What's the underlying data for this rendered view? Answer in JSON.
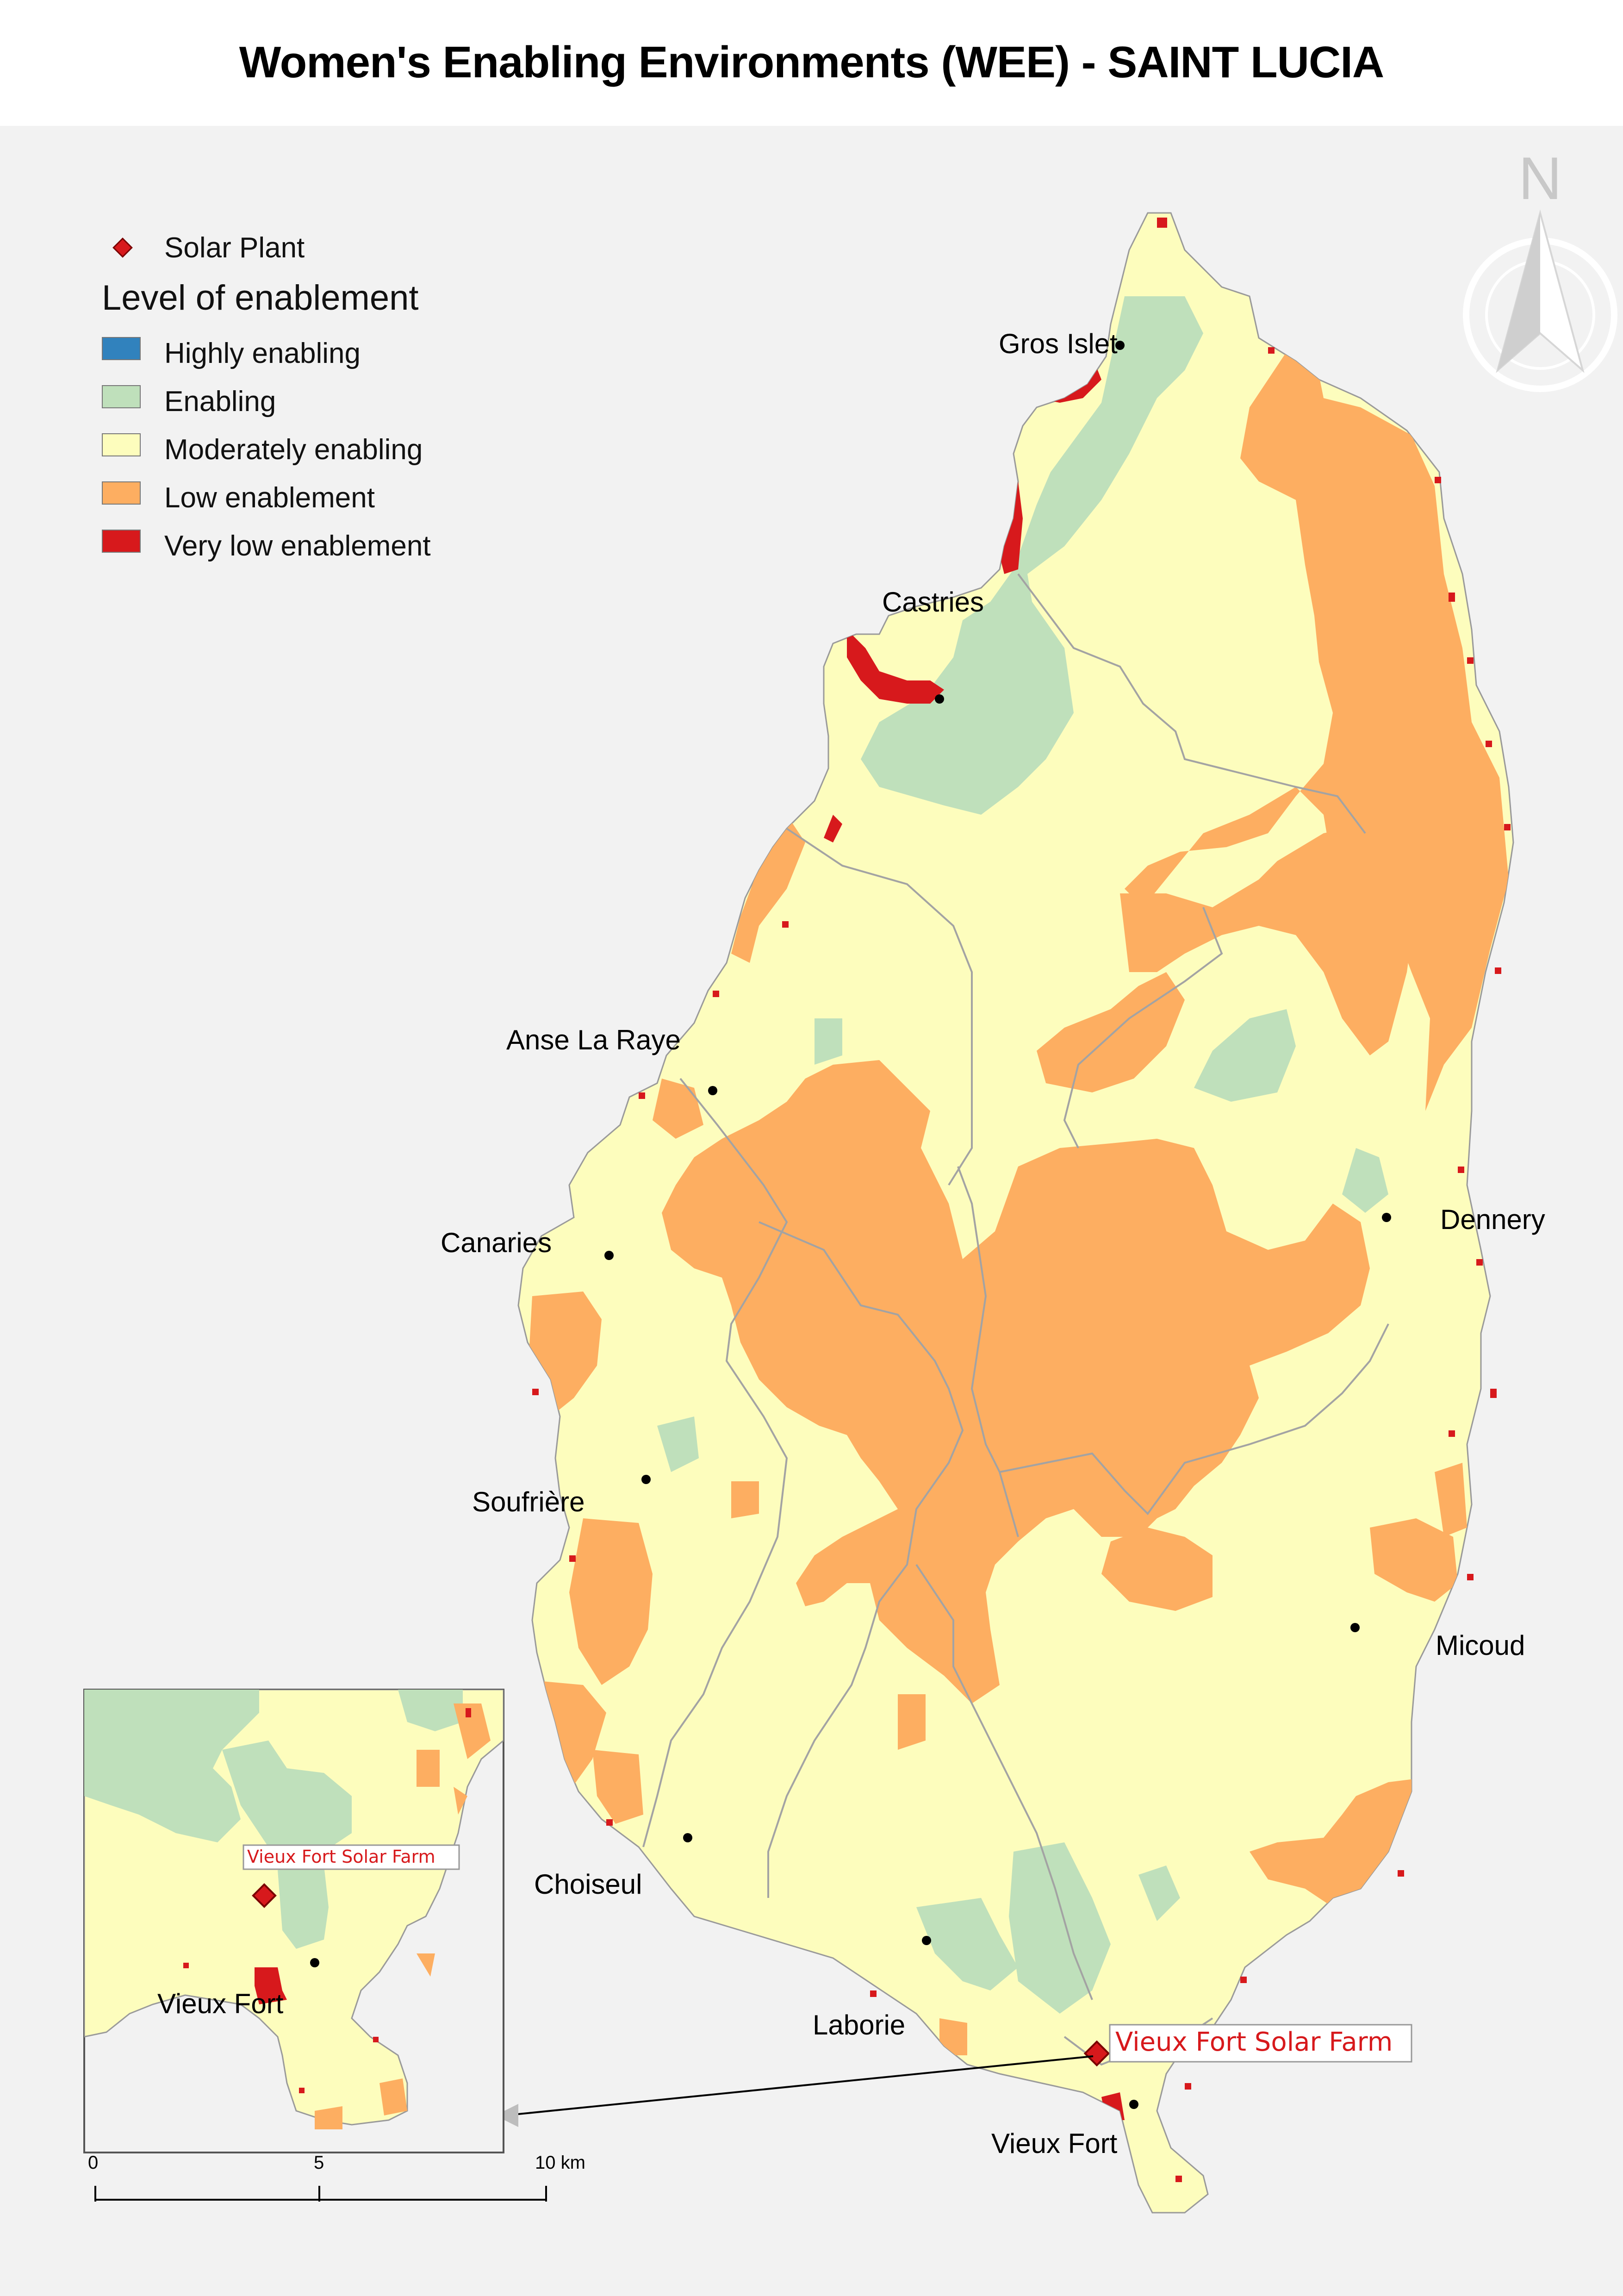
{
  "title": "Women's Enabling Environments (WEE) - SAINT LUCIA",
  "north_arrow": {
    "label": "N",
    "icon": "north-arrow-icon"
  },
  "legend": {
    "solar_label": "Solar Plant",
    "heading": "Level of enablement",
    "classes": [
      {
        "label": "Highly enabling",
        "color": "#3182bd"
      },
      {
        "label": "Enabling",
        "color": "#bfe0bb"
      },
      {
        "label": "Moderately enabling",
        "color": "#fdfdbd"
      },
      {
        "label": "Low enablement",
        "color": "#fdae61"
      },
      {
        "label": "Very low enablement",
        "color": "#d7191c"
      }
    ]
  },
  "places": {
    "gros_islet": "Gros Islet",
    "castries": "Castries",
    "anse_la_raye": "Anse La Raye",
    "canaries": "Canaries",
    "dennery": "Dennery",
    "soufriere": "Soufrière",
    "micoud": "Micoud",
    "choiseul": "Choiseul",
    "laborie": "Laborie",
    "vieux_fort": "Vieux Fort"
  },
  "solar_farm_label": "Vieux Fort Solar Farm",
  "inset": {
    "solar_farm_label": "Vieux Fort Solar Farm",
    "town_label": "Vieux Fort"
  },
  "scale_bar": {
    "labels": [
      "0",
      "5",
      "10 km"
    ]
  },
  "colors": {
    "land": "#fdfdbd",
    "sea": "#f2f2f2",
    "boundary": "#a3a3a3",
    "solar_label": "#d7191c"
  }
}
